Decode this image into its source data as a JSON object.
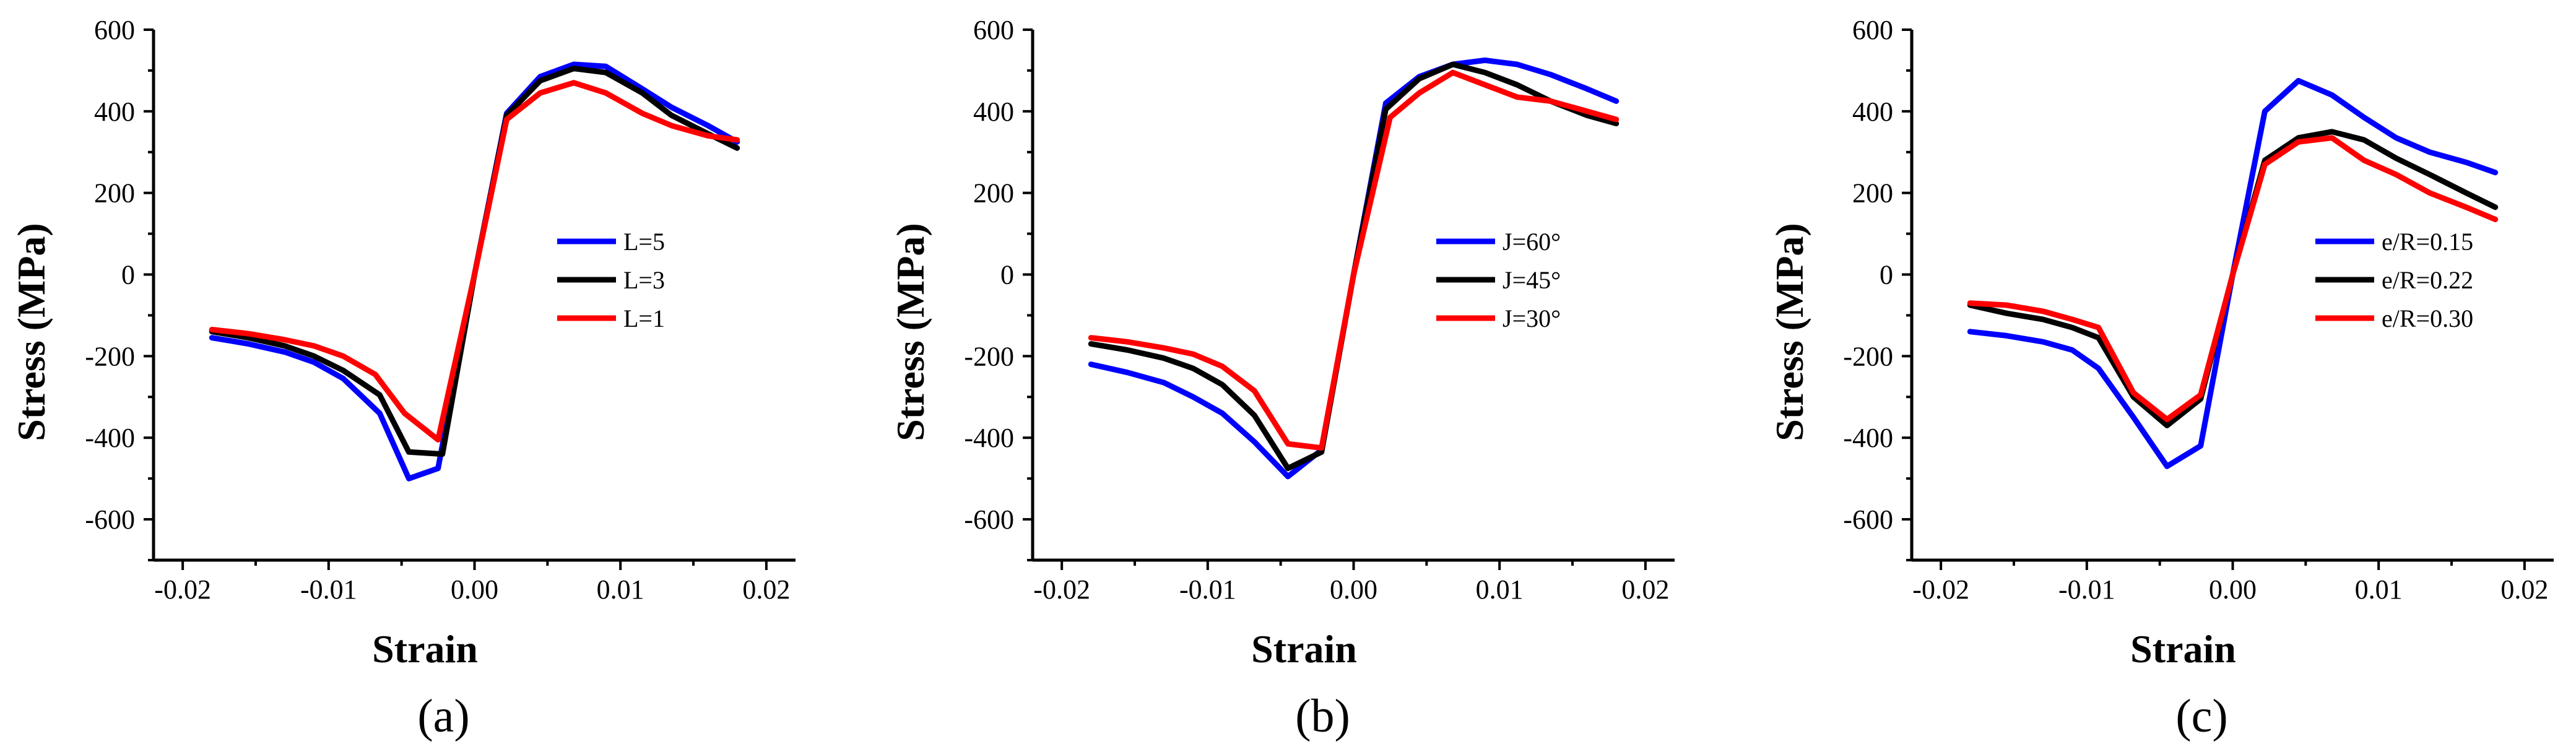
{
  "chart_data": [
    {
      "type": "line",
      "panel_label": "(a)",
      "xlabel": "Strain",
      "ylabel": "Stress (MPa)",
      "xlim": [
        -0.022,
        0.022
      ],
      "ylim": [
        -700,
        600
      ],
      "x_ticks": [
        -0.02,
        -0.01,
        0.0,
        0.01,
        0.02
      ],
      "x_tick_labels": [
        "-0.02",
        "-0.01",
        "0.00",
        "0.01",
        "0.02"
      ],
      "y_ticks": [
        -600,
        -400,
        -200,
        0,
        200,
        400,
        600
      ],
      "y_tick_labels": [
        "-600",
        "-400",
        "-200",
        "0",
        "200",
        "400",
        "600"
      ],
      "legend_position": "center-right",
      "series": [
        {
          "name": "L=5",
          "color": "#0000ff",
          "x": [
            -0.018,
            -0.0155,
            -0.013,
            -0.011,
            -0.009,
            -0.0065,
            -0.0045,
            -0.0025,
            0.0,
            0.0022,
            0.0045,
            0.0068,
            0.009,
            0.0115,
            0.0135,
            0.016,
            0.018
          ],
          "y": [
            -155,
            -170,
            -190,
            -215,
            -255,
            -340,
            -500,
            -475,
            0,
            395,
            485,
            515,
            510,
            455,
            410,
            365,
            325
          ]
        },
        {
          "name": "L=3",
          "color": "#000000",
          "x": [
            -0.018,
            -0.0155,
            -0.013,
            -0.011,
            -0.009,
            -0.0065,
            -0.0045,
            -0.0022,
            0.0,
            0.0022,
            0.0045,
            0.0068,
            0.009,
            0.0115,
            0.0135,
            0.016,
            0.018
          ],
          "y": [
            -140,
            -155,
            -175,
            -200,
            -235,
            -295,
            -435,
            -440,
            0,
            390,
            475,
            505,
            495,
            445,
            390,
            345,
            310
          ]
        },
        {
          "name": "L=1",
          "color": "#ff0000",
          "x": [
            -0.018,
            -0.0155,
            -0.013,
            -0.011,
            -0.009,
            -0.0068,
            -0.0048,
            -0.0025,
            0.0,
            0.0022,
            0.0045,
            0.0068,
            0.009,
            0.0115,
            0.0135,
            0.016,
            0.018
          ],
          "y": [
            -135,
            -145,
            -160,
            -175,
            -200,
            -245,
            -340,
            -405,
            0,
            380,
            445,
            470,
            445,
            395,
            365,
            340,
            330
          ]
        }
      ]
    },
    {
      "type": "line",
      "panel_label": "(b)",
      "xlabel": "Strain",
      "ylabel": "Stress (MPa)",
      "xlim": [
        -0.022,
        0.022
      ],
      "ylim": [
        -700,
        600
      ],
      "x_ticks": [
        -0.02,
        -0.01,
        0.0,
        0.01,
        0.02
      ],
      "x_tick_labels": [
        "-0.02",
        "-0.01",
        "0.00",
        "0.01",
        "0.02"
      ],
      "y_ticks": [
        -600,
        -400,
        -200,
        0,
        200,
        400,
        600
      ],
      "y_tick_labels": [
        "-600",
        "-400",
        "-200",
        "0",
        "200",
        "400",
        "600"
      ],
      "legend_position": "center-right",
      "series": [
        {
          "name": "J=60°",
          "color": "#0000ff",
          "x": [
            -0.018,
            -0.0155,
            -0.013,
            -0.011,
            -0.009,
            -0.0068,
            -0.0045,
            -0.0022,
            0.0,
            0.0022,
            0.0045,
            0.0068,
            0.009,
            0.0112,
            0.0135,
            0.016,
            0.018
          ],
          "y": [
            -220,
            -240,
            -265,
            -300,
            -340,
            -410,
            -495,
            -430,
            0,
            420,
            485,
            515,
            525,
            515,
            490,
            455,
            425
          ]
        },
        {
          "name": "J=45°",
          "color": "#000000",
          "x": [
            -0.018,
            -0.0155,
            -0.013,
            -0.011,
            -0.009,
            -0.0068,
            -0.0045,
            -0.0022,
            0.0,
            0.0022,
            0.0045,
            0.0068,
            0.009,
            0.0112,
            0.0135,
            0.016,
            0.018
          ],
          "y": [
            -170,
            -185,
            -205,
            -230,
            -270,
            -345,
            -475,
            -435,
            0,
            405,
            480,
            515,
            495,
            465,
            425,
            390,
            370
          ]
        },
        {
          "name": "J=30°",
          "color": "#ff0000",
          "x": [
            -0.018,
            -0.0155,
            -0.013,
            -0.011,
            -0.009,
            -0.0068,
            -0.0045,
            -0.0022,
            0.0,
            0.0025,
            0.0045,
            0.0068,
            0.009,
            0.0112,
            0.0135,
            0.016,
            0.018
          ],
          "y": [
            -155,
            -165,
            -180,
            -195,
            -225,
            -285,
            -415,
            -425,
            0,
            385,
            445,
            495,
            465,
            435,
            425,
            400,
            380
          ]
        }
      ]
    },
    {
      "type": "line",
      "panel_label": "(c)",
      "xlabel": "Strain",
      "ylabel": "Stress (MPa)",
      "xlim": [
        -0.022,
        0.022
      ],
      "ylim": [
        -700,
        600
      ],
      "x_ticks": [
        -0.02,
        -0.01,
        0.0,
        0.01,
        0.02
      ],
      "x_tick_labels": [
        "-0.02",
        "-0.01",
        "0.00",
        "0.01",
        "0.02"
      ],
      "y_ticks": [
        -600,
        -400,
        -200,
        0,
        200,
        400,
        600
      ],
      "y_tick_labels": [
        "-600",
        "-400",
        "-200",
        "0",
        "200",
        "400",
        "600"
      ],
      "legend_position": "center-right",
      "series": [
        {
          "name": "e/R=0.15",
          "color": "#0000ff",
          "x": [
            -0.018,
            -0.0155,
            -0.013,
            -0.011,
            -0.0092,
            -0.0068,
            -0.0045,
            -0.0022,
            0.0,
            0.0022,
            0.0045,
            0.0068,
            0.009,
            0.0112,
            0.0135,
            0.016,
            0.018
          ],
          "y": [
            -140,
            -150,
            -165,
            -185,
            -230,
            -350,
            -470,
            -420,
            0,
            400,
            475,
            440,
            385,
            335,
            300,
            275,
            250
          ]
        },
        {
          "name": "e/R=0.22",
          "color": "#000000",
          "x": [
            -0.018,
            -0.0155,
            -0.013,
            -0.011,
            -0.0092,
            -0.0068,
            -0.0045,
            -0.0022,
            0.0,
            0.0022,
            0.0045,
            0.0068,
            0.009,
            0.0112,
            0.0135,
            0.016,
            0.018
          ],
          "y": [
            -75,
            -95,
            -110,
            -130,
            -155,
            -300,
            -370,
            -305,
            0,
            280,
            335,
            350,
            330,
            285,
            245,
            200,
            165
          ]
        },
        {
          "name": "e/R=0.30",
          "color": "#ff0000",
          "x": [
            -0.018,
            -0.0155,
            -0.013,
            -0.011,
            -0.0092,
            -0.0068,
            -0.0045,
            -0.0022,
            0.0,
            0.0022,
            0.0045,
            0.0068,
            0.009,
            0.0112,
            0.0135,
            0.016,
            0.018
          ],
          "y": [
            -70,
            -75,
            -90,
            -110,
            -130,
            -290,
            -355,
            -295,
            0,
            270,
            325,
            335,
            280,
            245,
            200,
            165,
            135
          ]
        }
      ]
    }
  ]
}
